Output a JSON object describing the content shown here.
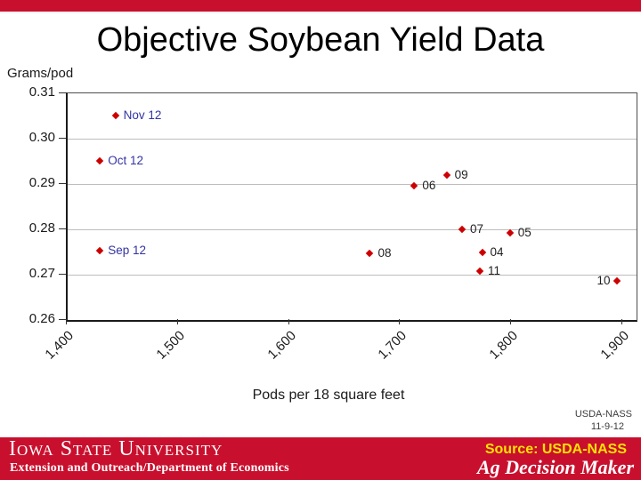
{
  "title": "Objective Soybean Yield Data",
  "accent_color": "#C8102E",
  "chart_data": {
    "type": "scatter",
    "title": "Objective Soybean Yield Data",
    "ylabel": "Grams/pod",
    "xlabel": "Pods per 18 square feet",
    "xlim": [
      1400,
      1912
    ],
    "ylim": [
      0.26,
      0.31
    ],
    "grid": "horizontal",
    "legend": "none",
    "x_ticks": [
      {
        "value": 1400,
        "label": "1,400"
      },
      {
        "value": 1500,
        "label": "1,500"
      },
      {
        "value": 1600,
        "label": "1,600"
      },
      {
        "value": 1700,
        "label": "1,700"
      },
      {
        "value": 1800,
        "label": "1,800"
      },
      {
        "value": 1900,
        "label": "1,900"
      }
    ],
    "y_ticks": [
      {
        "value": 0.31,
        "label": "0.31"
      },
      {
        "value": 0.3,
        "label": "0.30"
      },
      {
        "value": 0.29,
        "label": "0.29"
      },
      {
        "value": 0.28,
        "label": "0.28"
      },
      {
        "value": 0.27,
        "label": "0.27"
      },
      {
        "value": 0.26,
        "label": "0.26"
      }
    ],
    "gridlines_y": [
      0.3,
      0.29,
      0.28,
      0.27
    ],
    "marker_color": "#CC0000",
    "month_label_color": "#3333A3",
    "year_label_color": "#1f1f1f",
    "points": [
      {
        "label": "Nov 12",
        "x": 1443,
        "y": 0.3051,
        "label_style": "month",
        "side": "right"
      },
      {
        "label": "Oct 12",
        "x": 1429,
        "y": 0.2951,
        "label_style": "month",
        "side": "right"
      },
      {
        "label": "Sep 12",
        "x": 1429,
        "y": 0.2752,
        "label_style": "month",
        "side": "right"
      },
      {
        "label": "06",
        "x": 1712,
        "y": 0.2897,
        "label_style": "year",
        "side": "right"
      },
      {
        "label": "09",
        "x": 1741,
        "y": 0.2919,
        "label_style": "year",
        "side": "right"
      },
      {
        "label": "07",
        "x": 1755,
        "y": 0.28,
        "label_style": "year",
        "side": "right"
      },
      {
        "label": "05",
        "x": 1798,
        "y": 0.2792,
        "label_style": "year",
        "side": "right"
      },
      {
        "label": "08",
        "x": 1672,
        "y": 0.2747,
        "label_style": "year",
        "side": "right"
      },
      {
        "label": "04",
        "x": 1773,
        "y": 0.2749,
        "label_style": "year",
        "side": "right"
      },
      {
        "label": "11",
        "x": 1771,
        "y": 0.2707,
        "label_style": "year",
        "side": "right"
      },
      {
        "label": "10",
        "x": 1894,
        "y": 0.2687,
        "label_style": "year",
        "side": "left"
      }
    ]
  },
  "annotation": {
    "line1": "USDA-NASS",
    "line2": "11-9-12"
  },
  "footer": {
    "bg_color": "#C8102E",
    "university": "Iowa State University",
    "department": "Extension and Outreach/Department of Economics",
    "source_label": "Source: USDA-NASS",
    "source_color": "#FFE100",
    "brand": "Ag Decision Maker"
  }
}
